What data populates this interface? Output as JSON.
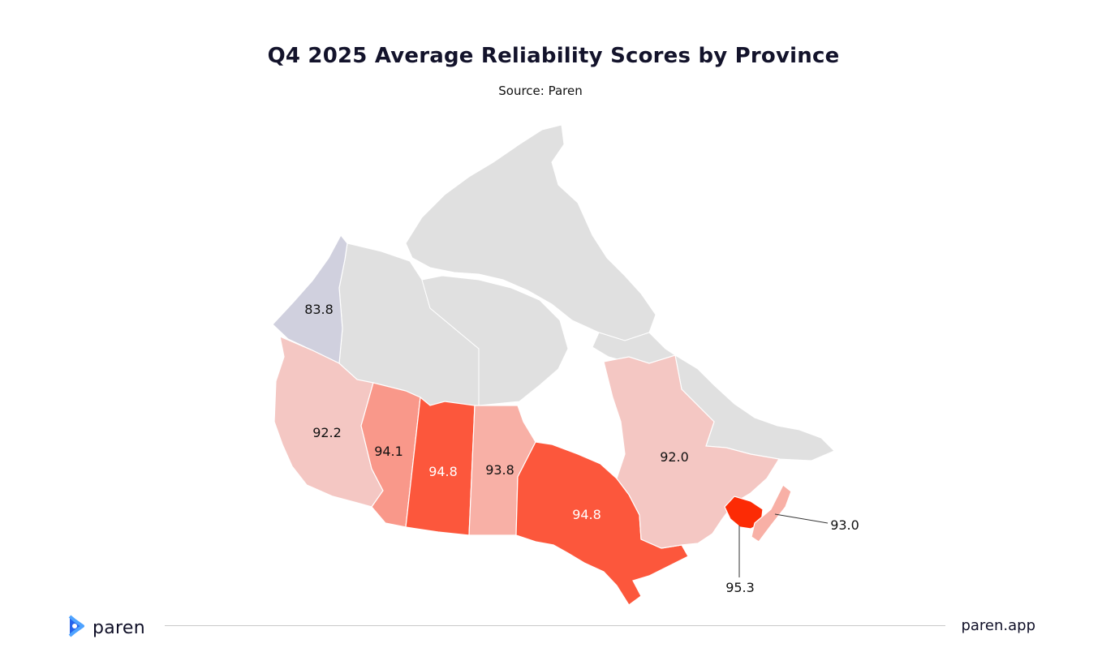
{
  "header": {
    "title": "Q4 2025 Average Reliability Scores by Province",
    "subtitle": "Source: Paren"
  },
  "map": {
    "country": "Canada",
    "regions": [
      {
        "id": "yukon",
        "value": "83.8",
        "color": "#d0d0de"
      },
      {
        "id": "british-columbia",
        "value": "92.2",
        "color": "#f4c7c3"
      },
      {
        "id": "alberta",
        "value": "94.1",
        "color": "#f9988a"
      },
      {
        "id": "saskatchewan",
        "value": "94.8",
        "color": "#fc573c"
      },
      {
        "id": "manitoba",
        "value": "93.8",
        "color": "#f8b0a6"
      },
      {
        "id": "ontario",
        "value": "94.8",
        "color": "#fc573c"
      },
      {
        "id": "quebec",
        "value": "92.0",
        "color": "#f4c7c3"
      },
      {
        "id": "nova-scotia",
        "value": "93.0",
        "color": "#f8b0a6"
      },
      {
        "id": "new-brunswick",
        "value": "95.3",
        "color": "#fc2b05"
      }
    ],
    "no_data_color": "#e0e0e0"
  },
  "footer": {
    "logo_text": "paren",
    "site": "paren.app"
  }
}
